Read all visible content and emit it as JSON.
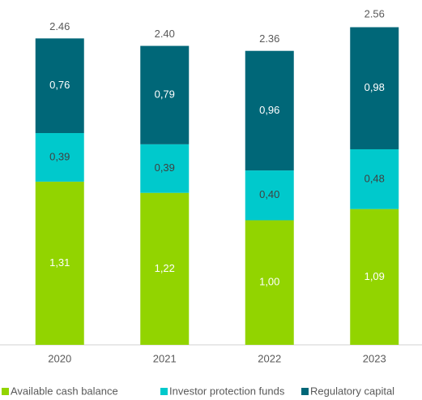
{
  "chart_data": {
    "type": "stacked_bar",
    "categories": [
      "2020",
      "2021",
      "2022",
      "2023"
    ],
    "series": [
      {
        "name": "Available cash balance",
        "color": "#92d400",
        "values": [
          1.31,
          1.22,
          1.0,
          1.09
        ],
        "value_labels": [
          "1,31",
          "1,22",
          "1,00",
          "1,09"
        ]
      },
      {
        "name": "Investor protection funds",
        "color": "#00c9cc",
        "values": [
          0.39,
          0.39,
          0.4,
          0.48
        ],
        "value_labels": [
          "0,39",
          "0,39",
          "0,40",
          "0,48"
        ]
      },
      {
        "name": "Regulatory capital",
        "color": "#006778",
        "values": [
          0.76,
          0.79,
          0.96,
          0.98
        ],
        "value_labels": [
          "0,76",
          "0,79",
          "0,96",
          "0,98"
        ]
      }
    ],
    "totals": [
      2.46,
      2.4,
      2.36,
      2.56
    ],
    "total_labels": [
      "2.46",
      "2.40",
      "2.36",
      "2.56"
    ],
    "ylim": [
      0,
      2.7
    ],
    "legend": "bottom"
  }
}
